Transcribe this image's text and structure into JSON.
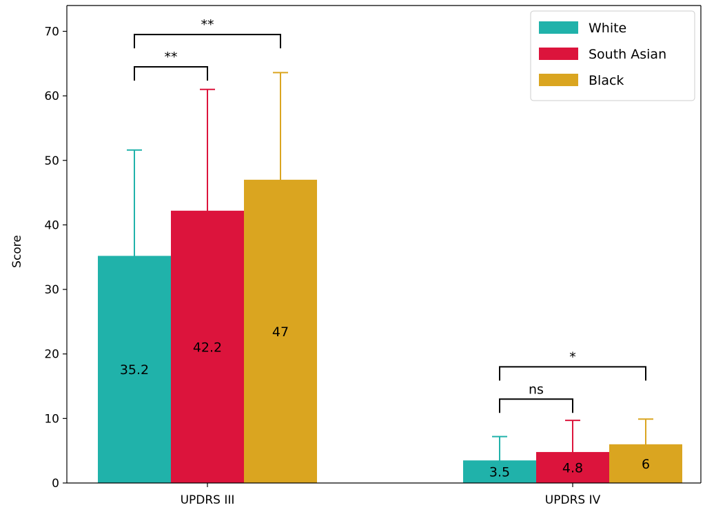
{
  "chart_data": {
    "type": "bar",
    "title": "",
    "xlabel": "",
    "ylabel": "Score",
    "ylim": [
      0,
      74
    ],
    "yticks": [
      0,
      10,
      20,
      30,
      40,
      50,
      60,
      70
    ],
    "categories": [
      "UPDRS III",
      "UPDRS IV"
    ],
    "series": [
      {
        "name": "White",
        "color": "#20b2aa",
        "values": [
          35.2,
          3.5
        ],
        "errors": [
          16.4,
          3.7
        ],
        "labels": [
          "35.2",
          "3.5"
        ]
      },
      {
        "name": "South Asian",
        "color": "#dc143c",
        "values": [
          42.2,
          4.8
        ],
        "errors": [
          18.8,
          4.9
        ],
        "labels": [
          "42.2",
          "4.8"
        ]
      },
      {
        "name": "Black",
        "color": "#daa520",
        "values": [
          47,
          6
        ],
        "errors": [
          16.6,
          3.9
        ],
        "labels": [
          "47",
          "6"
        ]
      }
    ],
    "significance": [
      {
        "category": 0,
        "from": 0,
        "to": 2,
        "label": "**",
        "level": 69.5
      },
      {
        "category": 0,
        "from": 0,
        "to": 1,
        "label": "**",
        "level": 64.5
      },
      {
        "category": 1,
        "from": 0,
        "to": 2,
        "label": "*",
        "level": 18.0
      },
      {
        "category": 1,
        "from": 0,
        "to": 1,
        "label": "ns",
        "level": 13.0
      }
    ],
    "legend_position": "top-right",
    "grid": false
  }
}
